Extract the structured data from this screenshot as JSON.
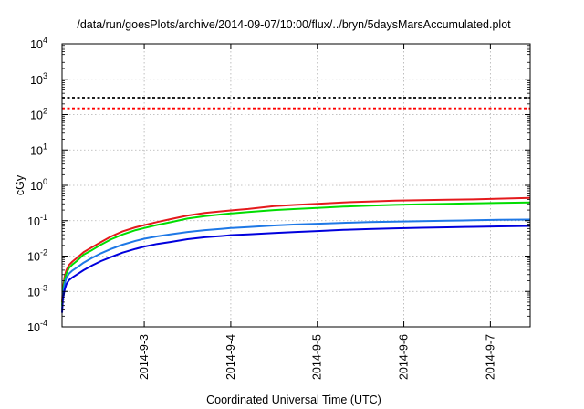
{
  "chart_data": {
    "type": "line",
    "title": "/data/run/goesPlots/archive/2014-09-07/10:00/flux/../bryn/5daysMarsAccumulated.plot",
    "xlabel": "Coordinated Universal Time (UTC)",
    "ylabel": "cGy",
    "y_scale": "log",
    "ylim": [
      0.0001,
      10000
    ],
    "xlim": [
      2.05,
      7.46
    ],
    "grid": true,
    "x_ticks": [
      {
        "value": 3,
        "label": "2014-9-3"
      },
      {
        "value": 4,
        "label": "2014-9-4"
      },
      {
        "value": 5,
        "label": "2014-9-5"
      },
      {
        "value": 6,
        "label": "2014-9-6"
      },
      {
        "value": 7,
        "label": "2014-9-7"
      }
    ],
    "y_ticks": [
      {
        "value": 0.0001,
        "base": "10",
        "exp": "-4"
      },
      {
        "value": 0.001,
        "base": "10",
        "exp": "-3"
      },
      {
        "value": 0.01,
        "base": "10",
        "exp": "-2"
      },
      {
        "value": 0.1,
        "base": "10",
        "exp": "-1"
      },
      {
        "value": 1,
        "base": "10",
        "exp": "0"
      },
      {
        "value": 10,
        "base": "10",
        "exp": "1"
      },
      {
        "value": 100,
        "base": "10",
        "exp": "2"
      },
      {
        "value": 1000,
        "base": "10",
        "exp": "3"
      },
      {
        "value": 10000,
        "base": "10",
        "exp": "4"
      }
    ],
    "reference_lines": [
      {
        "value": 300,
        "color": "#000000",
        "style": "dashed"
      },
      {
        "value": 150,
        "color": "#ff0000",
        "style": "dashed"
      }
    ],
    "series": [
      {
        "color": "#e41a1c",
        "x": [
          2.05,
          2.06,
          2.08,
          2.1,
          2.13,
          2.17,
          2.22,
          2.3,
          2.4,
          2.5,
          2.62,
          2.75,
          2.9,
          3.0,
          3.15,
          3.3,
          3.5,
          3.7,
          3.9,
          4.0,
          4.2,
          4.5,
          4.75,
          5.0,
          5.3,
          5.6,
          5.9,
          6.2,
          6.5,
          6.8,
          7.1,
          7.46
        ],
        "y": [
          0.0005,
          0.0012,
          0.0026,
          0.004,
          0.0056,
          0.007,
          0.0088,
          0.013,
          0.018,
          0.025,
          0.036,
          0.05,
          0.065,
          0.075,
          0.092,
          0.11,
          0.14,
          0.165,
          0.185,
          0.195,
          0.215,
          0.26,
          0.28,
          0.3,
          0.33,
          0.35,
          0.37,
          0.38,
          0.39,
          0.4,
          0.42,
          0.44
        ]
      },
      {
        "color": "#00dd00",
        "x": [
          2.05,
          2.06,
          2.08,
          2.1,
          2.13,
          2.17,
          2.22,
          2.3,
          2.4,
          2.5,
          2.62,
          2.75,
          2.9,
          3.0,
          3.15,
          3.3,
          3.5,
          3.7,
          3.9,
          4.0,
          4.2,
          4.5,
          4.75,
          5.0,
          5.3,
          5.6,
          5.9,
          6.2,
          6.5,
          6.8,
          7.1,
          7.46
        ],
        "y": [
          0.0004,
          0.001,
          0.0021,
          0.0032,
          0.0046,
          0.0058,
          0.0072,
          0.011,
          0.015,
          0.021,
          0.03,
          0.041,
          0.054,
          0.062,
          0.076,
          0.09,
          0.115,
          0.135,
          0.152,
          0.16,
          0.176,
          0.2,
          0.215,
          0.23,
          0.25,
          0.265,
          0.28,
          0.29,
          0.3,
          0.31,
          0.32,
          0.33
        ]
      },
      {
        "color": "#1e78e6",
        "x": [
          2.05,
          2.06,
          2.08,
          2.1,
          2.13,
          2.17,
          2.22,
          2.3,
          2.4,
          2.5,
          2.62,
          2.75,
          2.9,
          3.0,
          3.15,
          3.3,
          3.5,
          3.7,
          3.9,
          4.0,
          4.2,
          4.5,
          4.75,
          5.0,
          5.3,
          5.6,
          5.9,
          6.2,
          6.5,
          6.8,
          7.1,
          7.46
        ],
        "y": [
          0.0003,
          0.0008,
          0.0016,
          0.0024,
          0.0032,
          0.0039,
          0.0047,
          0.0065,
          0.009,
          0.012,
          0.016,
          0.021,
          0.027,
          0.031,
          0.036,
          0.041,
          0.048,
          0.054,
          0.059,
          0.062,
          0.066,
          0.073,
          0.078,
          0.082,
          0.087,
          0.091,
          0.094,
          0.097,
          0.1,
          0.103,
          0.106,
          0.108
        ]
      },
      {
        "color": "#0000dd",
        "x": [
          2.05,
          2.06,
          2.08,
          2.1,
          2.13,
          2.17,
          2.22,
          2.3,
          2.4,
          2.5,
          2.62,
          2.75,
          2.9,
          3.0,
          3.15,
          3.3,
          3.5,
          3.7,
          3.9,
          4.0,
          4.2,
          4.5,
          4.75,
          5.0,
          5.3,
          5.6,
          5.9,
          6.2,
          6.5,
          6.8,
          7.1,
          7.46
        ],
        "y": [
          0.00025,
          0.0006,
          0.0011,
          0.0016,
          0.0021,
          0.0025,
          0.003,
          0.004,
          0.0055,
          0.0072,
          0.0095,
          0.0125,
          0.016,
          0.0185,
          0.022,
          0.025,
          0.03,
          0.034,
          0.037,
          0.039,
          0.041,
          0.045,
          0.048,
          0.051,
          0.055,
          0.058,
          0.061,
          0.063,
          0.065,
          0.067,
          0.069,
          0.071
        ]
      }
    ]
  }
}
